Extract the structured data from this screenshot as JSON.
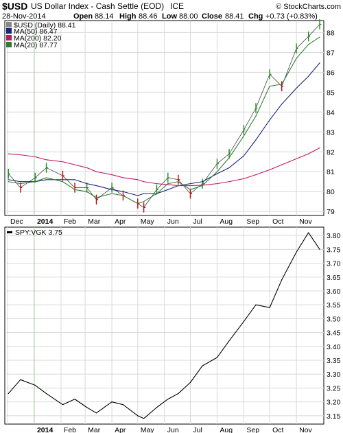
{
  "header": {
    "symbol": "$USD",
    "name": "US Dollar Index - Cash Settle (EOD)",
    "exchange": "ICE",
    "date": "28-Nov-2014",
    "open_label": "Open",
    "open": "88.14",
    "high_label": "High",
    "high": "88.46",
    "low_label": "Low",
    "low": "88.00",
    "close_label": "Close",
    "close": "88.41",
    "chg_label": "Chg",
    "chg": "+0.73 (+0.83%)",
    "credit": "© StockCharts.com"
  },
  "legend": {
    "main": "$USD (Daily) 88.41",
    "ma50": "MA(50) 86.47",
    "ma200": "MA(200) 82.20",
    "ma20": "MA(20) 87.77",
    "ratio": "SPY:VGK 3.75"
  },
  "colors": {
    "price": "#000000",
    "up_bar": "#1f8a1f",
    "down_bar": "#cc0000",
    "ma50": "#1a237e",
    "ma200": "#c2185b",
    "ma20": "#2e7d32",
    "grid": "#d8d8d8",
    "jan_marker": "#9ccc9c"
  },
  "chart_data": [
    {
      "type": "line",
      "title": "$USD US Dollar Index - Cash Settle (EOD) ICE",
      "x_labels": [
        "Dec",
        "2014",
        "Feb",
        "Mar",
        "Apr",
        "May",
        "Jun",
        "Jul",
        "Aug",
        "Sep",
        "Oct",
        "Nov"
      ],
      "x_range": [
        "2013-12-01",
        "2014-11-28"
      ],
      "y_ticks": [
        "79",
        "80",
        "81",
        "82",
        "83",
        "84",
        "85",
        "86",
        "87",
        "88"
      ],
      "ylim": [
        78.8,
        88.6
      ],
      "grid": true,
      "x": [
        "2013-12-02",
        "2013-12-16",
        "2014-01-02",
        "2014-01-15",
        "2014-02-03",
        "2014-02-17",
        "2014-03-03",
        "2014-03-14",
        "2014-04-01",
        "2014-04-14",
        "2014-05-01",
        "2014-05-08",
        "2014-05-23",
        "2014-06-05",
        "2014-06-17",
        "2014-07-01",
        "2014-07-15",
        "2014-08-01",
        "2014-08-15",
        "2014-09-01",
        "2014-09-15",
        "2014-10-01",
        "2014-10-15",
        "2014-11-01",
        "2014-11-15",
        "2014-11-28"
      ],
      "series": [
        {
          "name": "$USD (Daily)",
          "style": "ohlc",
          "values": [
            80.9,
            80.2,
            80.7,
            81.2,
            80.8,
            80.2,
            80.2,
            79.6,
            80.2,
            79.8,
            79.4,
            79.2,
            80.1,
            80.7,
            80.6,
            79.9,
            80.4,
            81.4,
            81.9,
            83.1,
            84.2,
            85.9,
            85.3,
            87.2,
            87.8,
            88.41
          ]
        },
        {
          "name": "MA(50)",
          "values": [
            80.6,
            80.5,
            80.5,
            80.6,
            80.6,
            80.6,
            80.4,
            80.3,
            80.1,
            80.0,
            79.8,
            79.9,
            79.9,
            80.1,
            80.3,
            80.4,
            80.5,
            80.9,
            81.2,
            81.8,
            82.6,
            83.6,
            84.4,
            85.2,
            85.8,
            86.47
          ]
        },
        {
          "name": "MA(200)",
          "values": [
            81.9,
            81.85,
            81.75,
            81.6,
            81.5,
            81.35,
            81.2,
            81.0,
            80.85,
            80.7,
            80.6,
            80.5,
            80.4,
            80.35,
            80.3,
            80.3,
            80.32,
            80.4,
            80.5,
            80.65,
            80.85,
            81.1,
            81.35,
            81.65,
            81.9,
            82.2
          ]
        },
        {
          "name": "MA(20)",
          "values": [
            80.5,
            80.4,
            80.5,
            80.7,
            80.5,
            80.1,
            80.0,
            79.7,
            79.9,
            79.8,
            79.4,
            79.5,
            79.9,
            80.4,
            80.5,
            80.1,
            80.3,
            81.0,
            81.7,
            82.8,
            83.8,
            85.3,
            85.4,
            86.7,
            87.4,
            87.77
          ]
        }
      ]
    },
    {
      "type": "line",
      "title": "SPY:VGK 3.75",
      "x_labels": [
        "2014",
        "Feb",
        "Mar",
        "Apr",
        "May",
        "Jun",
        "Jul",
        "Aug",
        "Sep",
        "Oct",
        "Nov"
      ],
      "x_range": [
        "2013-12-01",
        "2014-11-28"
      ],
      "y_ticks": [
        "3.15",
        "3.20",
        "3.25",
        "3.30",
        "3.35",
        "3.40",
        "3.45",
        "3.50",
        "3.55",
        "3.60",
        "3.65",
        "3.70",
        "3.75",
        "3.80"
      ],
      "ylim": [
        3.12,
        3.83
      ],
      "grid": true,
      "x": [
        "2013-12-02",
        "2013-12-16",
        "2014-01-02",
        "2014-01-15",
        "2014-02-03",
        "2014-02-17",
        "2014-03-03",
        "2014-03-14",
        "2014-04-01",
        "2014-04-14",
        "2014-05-01",
        "2014-05-08",
        "2014-05-23",
        "2014-06-05",
        "2014-06-17",
        "2014-07-01",
        "2014-07-15",
        "2014-08-01",
        "2014-08-15",
        "2014-09-01",
        "2014-09-15",
        "2014-10-01",
        "2014-10-15",
        "2014-11-01",
        "2014-11-15",
        "2014-11-28"
      ],
      "series": [
        {
          "name": "SPY:VGK",
          "values": [
            3.23,
            3.28,
            3.26,
            3.23,
            3.19,
            3.21,
            3.18,
            3.16,
            3.2,
            3.19,
            3.15,
            3.14,
            3.18,
            3.21,
            3.23,
            3.27,
            3.33,
            3.36,
            3.42,
            3.49,
            3.55,
            3.54,
            3.64,
            3.74,
            3.81,
            3.75
          ]
        }
      ]
    }
  ]
}
